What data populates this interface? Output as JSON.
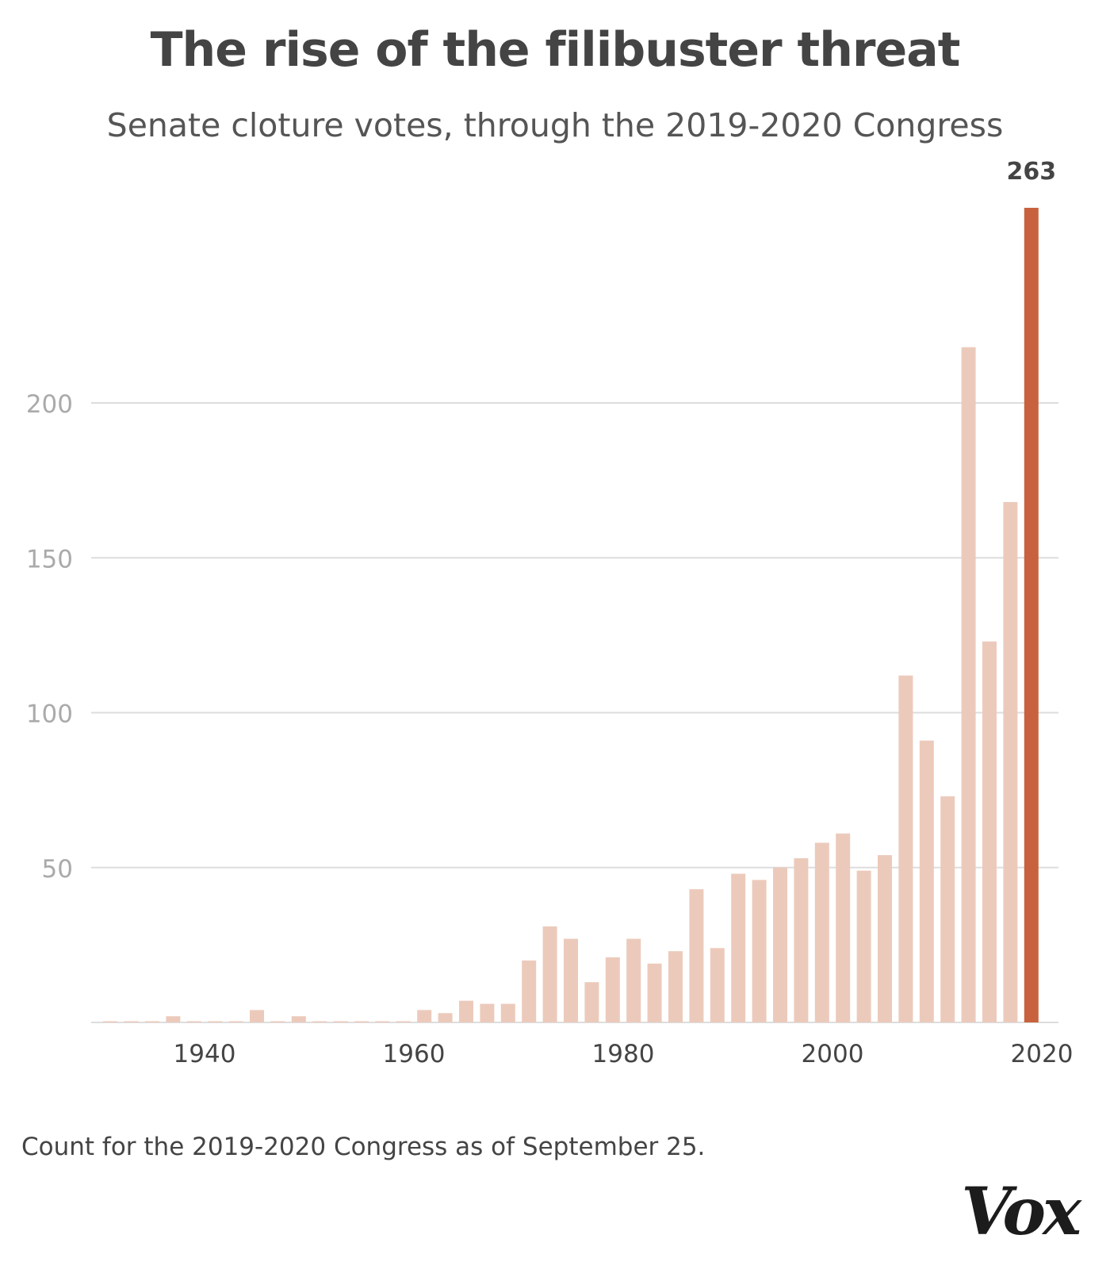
{
  "title": "The rise of the filibuster threat",
  "subtitle": "Senate cloture votes, through the 2019-2020 Congress",
  "note": "Count for the 2019-2020 Congress as of September 25.",
  "logo": "Vox",
  "colors": {
    "bar": "#eccabb",
    "highlight": "#c8623e",
    "grid": "#dddddd",
    "tick_y": "#aaaaaa",
    "tick_x": "#444444"
  },
  "chart_data": {
    "type": "bar",
    "title": "The rise of the filibuster threat",
    "subtitle": "Senate cloture votes, through the 2019-2020 Congress",
    "xlabel": "",
    "ylabel": "",
    "ylim": [
      0,
      263
    ],
    "xlim": [
      1929,
      2021
    ],
    "y_ticks": [
      50,
      100,
      150,
      200
    ],
    "x_ticks": [
      1940,
      1960,
      1980,
      2000,
      2020
    ],
    "grid": true,
    "highlight_label": "263",
    "x": [
      1931,
      1933,
      1935,
      1937,
      1939,
      1941,
      1943,
      1945,
      1947,
      1949,
      1951,
      1953,
      1955,
      1957,
      1959,
      1961,
      1963,
      1965,
      1967,
      1969,
      1971,
      1973,
      1975,
      1977,
      1979,
      1981,
      1983,
      1985,
      1987,
      1989,
      1991,
      1993,
      1995,
      1997,
      1999,
      2001,
      2003,
      2005,
      2007,
      2009,
      2011,
      2013,
      2015,
      2017,
      2019
    ],
    "values": [
      0,
      0,
      0,
      2,
      0,
      0,
      0,
      4,
      0,
      2,
      0,
      0,
      0,
      0,
      0,
      4,
      3,
      7,
      6,
      6,
      20,
      31,
      27,
      13,
      21,
      27,
      19,
      23,
      43,
      24,
      48,
      46,
      50,
      53,
      58,
      61,
      49,
      54,
      112,
      91,
      73,
      218,
      123,
      168,
      263
    ]
  }
}
